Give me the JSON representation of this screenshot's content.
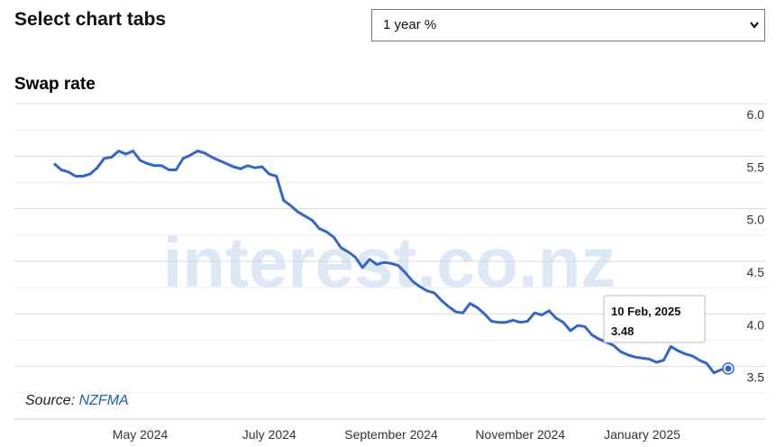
{
  "header": {
    "title": "Select chart tabs",
    "select_value": "1 year %"
  },
  "chart_data": {
    "type": "line",
    "title": "Swap rate",
    "values": [
      5.43,
      5.37,
      5.35,
      5.31,
      5.31,
      5.33,
      5.39,
      5.48,
      5.49,
      5.55,
      5.52,
      5.55,
      5.46,
      5.43,
      5.41,
      5.41,
      5.37,
      5.37,
      5.48,
      5.51,
      5.55,
      5.53,
      5.49,
      5.46,
      5.43,
      5.4,
      5.38,
      5.41,
      5.39,
      5.4,
      5.33,
      5.31,
      5.08,
      5.03,
      4.97,
      4.93,
      4.89,
      4.81,
      4.78,
      4.73,
      4.63,
      4.59,
      4.54,
      4.44,
      4.52,
      4.47,
      4.49,
      4.48,
      4.46,
      4.39,
      4.31,
      4.26,
      4.22,
      4.2,
      4.13,
      4.07,
      4.02,
      4.01,
      4.1,
      4.06,
      4.0,
      3.93,
      3.92,
      3.92,
      3.94,
      3.92,
      3.93,
      4.01,
      3.99,
      4.03,
      3.96,
      3.92,
      3.84,
      3.89,
      3.88,
      3.8,
      3.76,
      3.73,
      3.7,
      3.64,
      3.61,
      3.59,
      3.58,
      3.57,
      3.54,
      3.56,
      3.69,
      3.65,
      3.62,
      3.6,
      3.56,
      3.53,
      3.44,
      3.47,
      3.48
    ],
    "color": "#3366cc",
    "xlim": [
      -6,
      96
    ],
    "xticks": [
      {
        "value": 12,
        "label": "May 2024"
      },
      {
        "value": 30,
        "label": "July 2024"
      },
      {
        "value": 47,
        "label": "September 2024"
      },
      {
        "value": 65,
        "label": "November 2024"
      },
      {
        "value": 82,
        "label": "January 2025"
      }
    ],
    "ylim": [
      3.0,
      6.0
    ],
    "yticks": [
      {
        "value": 3.5,
        "label": "3.5"
      },
      {
        "value": 4.0,
        "label": "4.0"
      },
      {
        "value": 4.5,
        "label": "4.5"
      },
      {
        "value": 5.0,
        "label": "5.0"
      },
      {
        "value": 5.5,
        "label": "5.5"
      },
      {
        "value": 6.0,
        "label": "6.0"
      }
    ],
    "minor_yticks": [
      3.25,
      3.75,
      4.25,
      4.75,
      5.25,
      5.75
    ],
    "grid": true,
    "tooltip_label": "10 Feb, 2025",
    "watermark": "interest.co.nz",
    "source_label": "Source:",
    "source": "NZFMA"
  }
}
